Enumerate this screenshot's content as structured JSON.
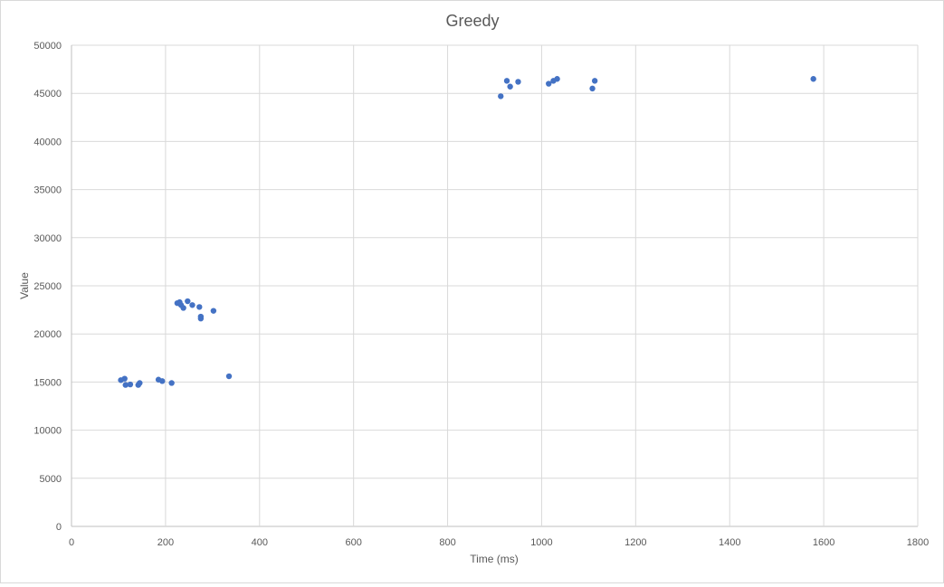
{
  "chart_data": {
    "type": "scatter",
    "title": "Greedy",
    "xlabel": "Time (ms)",
    "ylabel": "Value",
    "xlim": [
      0,
      1800
    ],
    "ylim": [
      0,
      50000
    ],
    "xticks": [
      0,
      200,
      400,
      600,
      800,
      1000,
      1200,
      1400,
      1600,
      1800
    ],
    "yticks": [
      0,
      5000,
      10000,
      15000,
      20000,
      25000,
      30000,
      35000,
      40000,
      45000,
      50000
    ],
    "grid": true,
    "legend": "none",
    "marker_color": "#4472C4",
    "points": [
      {
        "x": 105,
        "y": 15200
      },
      {
        "x": 113,
        "y": 15350
      },
      {
        "x": 115,
        "y": 14700
      },
      {
        "x": 125,
        "y": 14750
      },
      {
        "x": 142,
        "y": 14700
      },
      {
        "x": 145,
        "y": 14900
      },
      {
        "x": 185,
        "y": 15250
      },
      {
        "x": 193,
        "y": 15100
      },
      {
        "x": 213,
        "y": 14900
      },
      {
        "x": 225,
        "y": 23200
      },
      {
        "x": 230,
        "y": 23300
      },
      {
        "x": 233,
        "y": 23000
      },
      {
        "x": 238,
        "y": 22700
      },
      {
        "x": 247,
        "y": 23400
      },
      {
        "x": 257,
        "y": 23000
      },
      {
        "x": 272,
        "y": 22800
      },
      {
        "x": 275,
        "y": 21800
      },
      {
        "x": 275,
        "y": 21600
      },
      {
        "x": 302,
        "y": 22400
      },
      {
        "x": 335,
        "y": 15600
      },
      {
        "x": 913,
        "y": 44700
      },
      {
        "x": 926,
        "y": 46300
      },
      {
        "x": 933,
        "y": 45700
      },
      {
        "x": 950,
        "y": 46200
      },
      {
        "x": 1015,
        "y": 46000
      },
      {
        "x": 1025,
        "y": 46300
      },
      {
        "x": 1033,
        "y": 46500
      },
      {
        "x": 1108,
        "y": 45500
      },
      {
        "x": 1113,
        "y": 46300
      },
      {
        "x": 1578,
        "y": 46500
      }
    ]
  }
}
